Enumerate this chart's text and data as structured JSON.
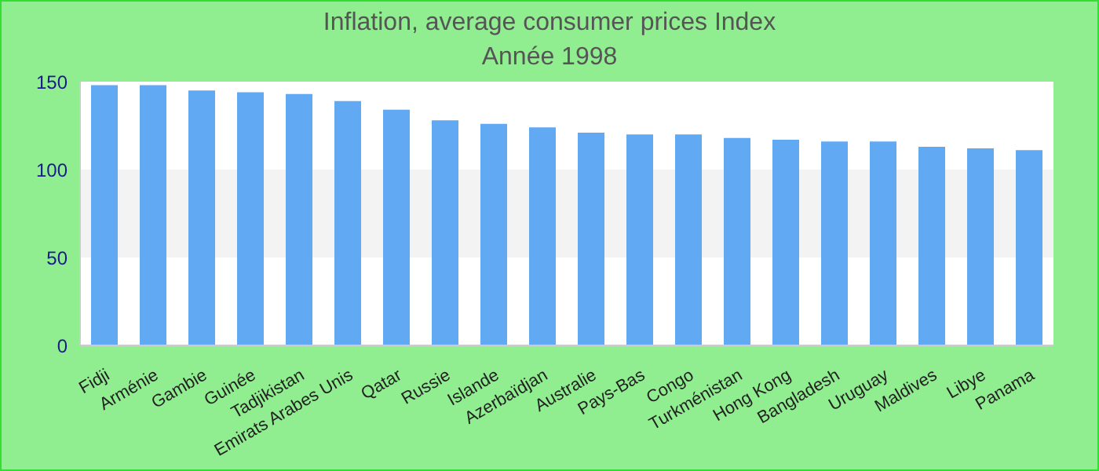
{
  "chart_data": {
    "type": "bar",
    "title": "Inflation, average consumer prices  Index",
    "subtitle": "Année 1998",
    "categories": [
      "Fidji",
      "Arménie",
      "Gambie",
      "Guinée",
      "Tadjikistan",
      "Emirats Arabes Unis",
      "Qatar",
      "Russie",
      "Islande",
      "Azerbaïdjan",
      "Australie",
      "Pays-Bas",
      "Congo",
      "Turkménistan",
      "Hong Kong",
      "Bangladesh",
      "Uruguay",
      "Maldives",
      "Libye",
      "Panama"
    ],
    "values": [
      148,
      148,
      145,
      144,
      143,
      139,
      134,
      128,
      126,
      124,
      121,
      120,
      120,
      118,
      117,
      116,
      116,
      113,
      112,
      111
    ],
    "color": "#62a9f4",
    "ylim": [
      0,
      150
    ],
    "yticks": [
      0,
      50,
      100,
      150
    ],
    "bands": [
      {
        "axis": "y",
        "from": 50,
        "to": 100,
        "color": "#f3f3f3"
      }
    ]
  }
}
